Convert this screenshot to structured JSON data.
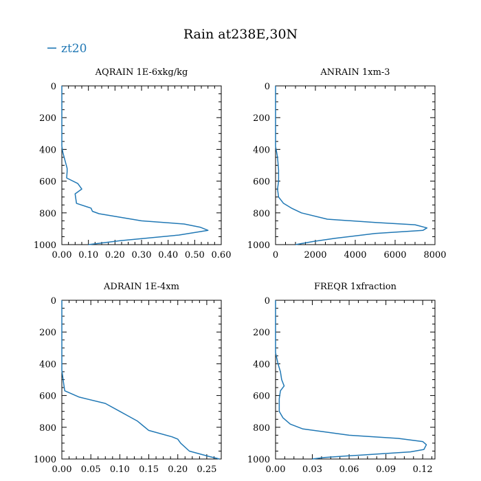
{
  "figure": {
    "title": "Rain at238E,30N",
    "legend_label": "zt20",
    "legend_color": "#1f77b4"
  },
  "chart_data": [
    {
      "type": "line",
      "title": "AQRAIN  1E-6xkg/kg",
      "xlabel": "",
      "ylabel": "",
      "xlim": [
        0,
        0.6
      ],
      "ylim": [
        1000,
        0
      ],
      "x_ticks": [
        "0.00",
        "0.10",
        "0.20",
        "0.30",
        "0.40",
        "0.50",
        "0.60"
      ],
      "y_ticks": [
        "0",
        "200",
        "400",
        "600",
        "800",
        "1000"
      ],
      "series": [
        {
          "name": "zt20",
          "color": "#1f77b4",
          "x": [
            0,
            0,
            0.004,
            0.012,
            0.02,
            0.02,
            0.018,
            0.06,
            0.075,
            0.05,
            0.055,
            0.11,
            0.115,
            0.14,
            0.3,
            0.46,
            0.52,
            0.55,
            0.44,
            0.22,
            0.1
          ],
          "y": [
            0,
            380,
            420,
            470,
            520,
            540,
            580,
            615,
            650,
            680,
            740,
            770,
            790,
            805,
            850,
            870,
            890,
            910,
            940,
            975,
            1000
          ]
        }
      ]
    },
    {
      "type": "line",
      "title": "ANRAIN  1xm-3",
      "xlabel": "",
      "ylabel": "",
      "xlim": [
        0,
        8000
      ],
      "ylim": [
        1000,
        0
      ],
      "x_ticks": [
        "0",
        "2000",
        "4000",
        "6000",
        "8000"
      ],
      "y_ticks": [
        "0",
        "200",
        "400",
        "600",
        "800",
        "1000"
      ],
      "series": [
        {
          "name": "zt20",
          "color": "#1f77b4",
          "x": [
            0,
            0,
            100,
            150,
            150,
            100,
            150,
            400,
            800,
            1300,
            2600,
            5000,
            7000,
            7600,
            7400,
            5000,
            3000,
            1900,
            1000
          ],
          "y": [
            0,
            380,
            450,
            530,
            600,
            650,
            700,
            740,
            770,
            800,
            840,
            860,
            875,
            895,
            910,
            930,
            960,
            980,
            1000
          ]
        }
      ]
    },
    {
      "type": "line",
      "title": "ADRAIN  1E-4xm",
      "xlabel": "",
      "ylabel": "",
      "xlim": [
        0,
        0.275
      ],
      "ylim": [
        1000,
        0
      ],
      "x_ticks": [
        "0.00",
        "0.05",
        "0.10",
        "0.15",
        "0.20",
        "0.25"
      ],
      "y_ticks": [
        "0",
        "200",
        "400",
        "600",
        "800",
        "1000"
      ],
      "series": [
        {
          "name": "zt20",
          "color": "#1f77b4",
          "x": [
            0,
            0,
            0.003,
            0.005,
            0.03,
            0.075,
            0.1,
            0.115,
            0.13,
            0.14,
            0.15,
            0.19,
            0.2,
            0.205,
            0.22,
            0.255,
            0.272
          ],
          "y": [
            0,
            440,
            520,
            570,
            610,
            650,
            700,
            730,
            760,
            790,
            820,
            860,
            875,
            900,
            950,
            985,
            1000
          ]
        }
      ]
    },
    {
      "type": "line",
      "title": "FREQR  1xfraction",
      "xlabel": "",
      "ylabel": "",
      "xlim": [
        0,
        0.13
      ],
      "ylim": [
        1000,
        0
      ],
      "x_ticks": [
        "0.00",
        "0.03",
        "0.06",
        "0.09",
        "0.12"
      ],
      "y_ticks": [
        "0",
        "200",
        "400",
        "600",
        "800",
        "1000"
      ],
      "series": [
        {
          "name": "zt20",
          "color": "#1f77b4",
          "x": [
            0,
            0,
            0.002,
            0.004,
            0.005,
            0.007,
            0.004,
            0.003,
            0.003,
            0.006,
            0.012,
            0.022,
            0.06,
            0.1,
            0.12,
            0.123,
            0.121,
            0.11,
            0.07,
            0.04,
            0.03
          ],
          "y": [
            0,
            330,
            400,
            450,
            500,
            540,
            570,
            620,
            700,
            740,
            780,
            810,
            850,
            870,
            890,
            910,
            940,
            955,
            975,
            990,
            1000
          ]
        }
      ]
    }
  ]
}
